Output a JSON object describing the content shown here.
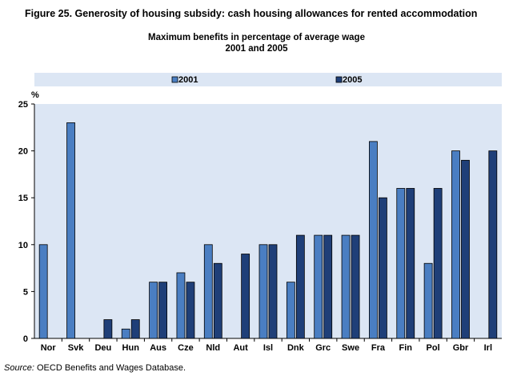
{
  "figure_title": "Figure 25. Generosity of housing subsidy: cash housing allowances for rented accommodation",
  "source": {
    "label": "Source:",
    "text": "OECD Benefits and Wages Database."
  },
  "colors": {
    "panel_bg": "#dce6f4",
    "series_2001": "#4a7ec2",
    "series_2005": "#1f3f78",
    "bar_stroke": "#000000"
  },
  "chart_data": {
    "type": "bar",
    "title": "Maximum benefits in percentage  of average wage",
    "subtitle": "2001 and 2005",
    "ylabel": "%",
    "xlabel": "",
    "ylim": [
      0,
      25
    ],
    "yticks": [
      0,
      5,
      10,
      15,
      20,
      25
    ],
    "legend_position": "top",
    "categories": [
      "Nor",
      "Svk",
      "Deu",
      "Hun",
      "Aus",
      "Cze",
      "Nld",
      "Aut",
      "Isl",
      "Dnk",
      "Grc",
      "Swe",
      "Fra",
      "Fin",
      "Pol",
      "Gbr",
      "Irl"
    ],
    "series": [
      {
        "name": "2001",
        "values": [
          10,
          23,
          0,
          1,
          6,
          7,
          10,
          0,
          10,
          6,
          11,
          11,
          21,
          16,
          8,
          20,
          0
        ]
      },
      {
        "name": "2005",
        "values": [
          0,
          0,
          2,
          2,
          6,
          6,
          8,
          9,
          10,
          11,
          11,
          11,
          15,
          16,
          16,
          19,
          20
        ]
      }
    ]
  }
}
